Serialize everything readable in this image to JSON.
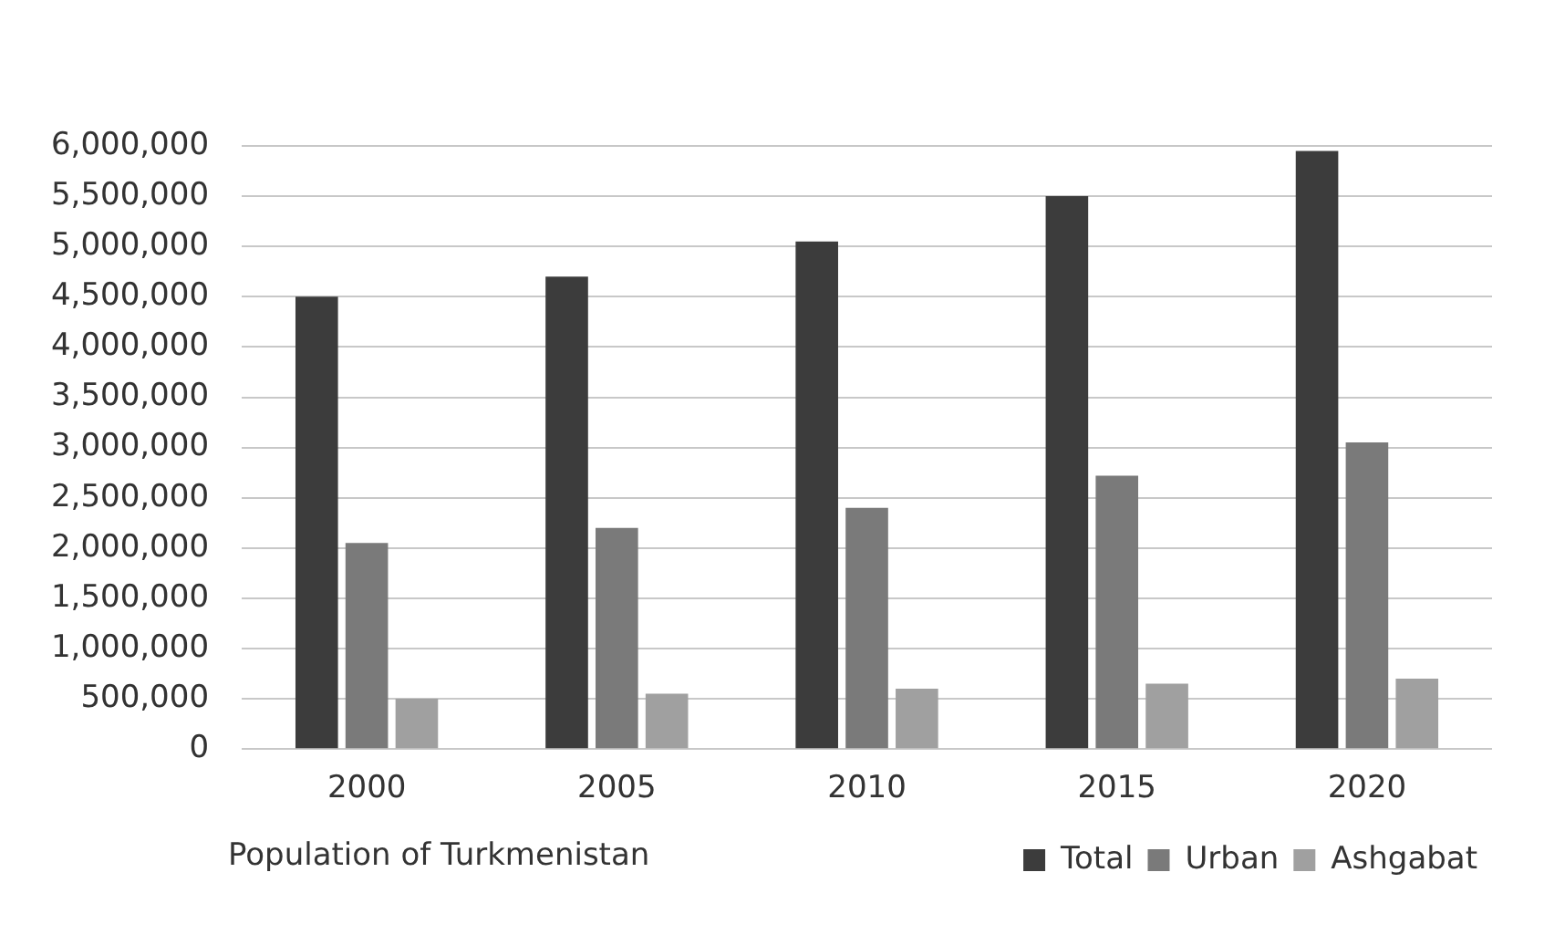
{
  "chart_data": {
    "type": "bar",
    "title": "Population of Turkmenistan",
    "categories": [
      "2000",
      "2005",
      "2010",
      "2015",
      "2020"
    ],
    "series": [
      {
        "name": "Total",
        "color": "#3c3c3c",
        "values": [
          4500000,
          4700000,
          5050000,
          5500000,
          5950000
        ]
      },
      {
        "name": "Urban",
        "color": "#7a7a7a",
        "values": [
          2050000,
          2200000,
          2400000,
          2720000,
          3050000
        ]
      },
      {
        "name": "Ashgabat",
        "color": "#a0a0a0",
        "values": [
          500000,
          550000,
          600000,
          650000,
          700000
        ]
      }
    ],
    "ylim": [
      0,
      6000000
    ],
    "yticks": [
      0,
      {
        "value": 500000,
        "label": "500,000"
      },
      {
        "value": 1000000,
        "label": "1,000,000"
      },
      {
        "value": 1500000,
        "label": "1,500,000"
      },
      {
        "value": 2000000,
        "label": "2,000,000"
      },
      {
        "value": 2500000,
        "label": "2,500,000"
      },
      {
        "value": 3000000,
        "label": "3,000,000"
      },
      {
        "value": 3500000,
        "label": "3,500,000"
      },
      {
        "value": 4000000,
        "label": "4,000,000"
      },
      {
        "value": 4500000,
        "label": "4,500,000"
      },
      {
        "value": 5000000,
        "label": "5,000,000"
      },
      {
        "value": 5500000,
        "label": "5,500,000"
      },
      {
        "value": 6000000,
        "label": "6,000,000"
      }
    ],
    "grid": "y",
    "legend": "bottom right"
  }
}
